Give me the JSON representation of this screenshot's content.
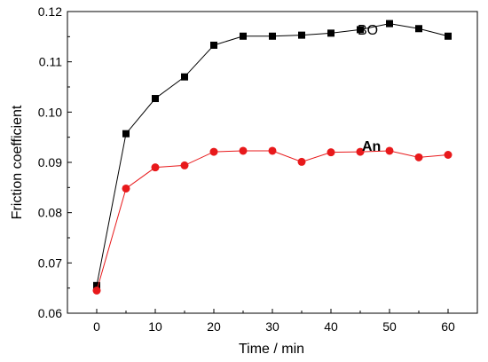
{
  "chart_data": {
    "type": "line",
    "title": "",
    "xlabel": "Time / min",
    "ylabel": "Friction coefficient",
    "xlim": [
      -5,
      65
    ],
    "ylim": [
      0.06,
      0.12
    ],
    "xticks": [
      0,
      10,
      20,
      30,
      40,
      50,
      60
    ],
    "xtick_labels": [
      "0",
      "10",
      "20",
      "30",
      "40",
      "50",
      "60"
    ],
    "yticks": [
      0.06,
      0.07,
      0.08,
      0.09,
      0.1,
      0.11,
      0.12
    ],
    "ytick_labels": [
      "0.06",
      "0.07",
      "0.08",
      "0.09",
      "0.10",
      "0.11",
      "0.12"
    ],
    "grid": false,
    "x": [
      0,
      5,
      10,
      15,
      20,
      25,
      30,
      35,
      40,
      45,
      50,
      55,
      60
    ],
    "series": [
      {
        "name": "BO",
        "color": "#000000",
        "marker": "square",
        "label_bold": false,
        "values": [
          0.0655,
          0.0957,
          0.1027,
          0.107,
          0.1133,
          0.1151,
          0.1151,
          0.1153,
          0.1157,
          0.1164,
          0.1176,
          0.1166,
          0.1151
        ]
      },
      {
        "name": "An",
        "color": "#e8191b",
        "marker": "circle",
        "label_bold": true,
        "values": [
          0.0645,
          0.0848,
          0.089,
          0.0894,
          0.0921,
          0.0923,
          0.0923,
          0.0901,
          0.092,
          0.0921,
          0.0923,
          0.091,
          0.0915
        ]
      }
    ]
  }
}
